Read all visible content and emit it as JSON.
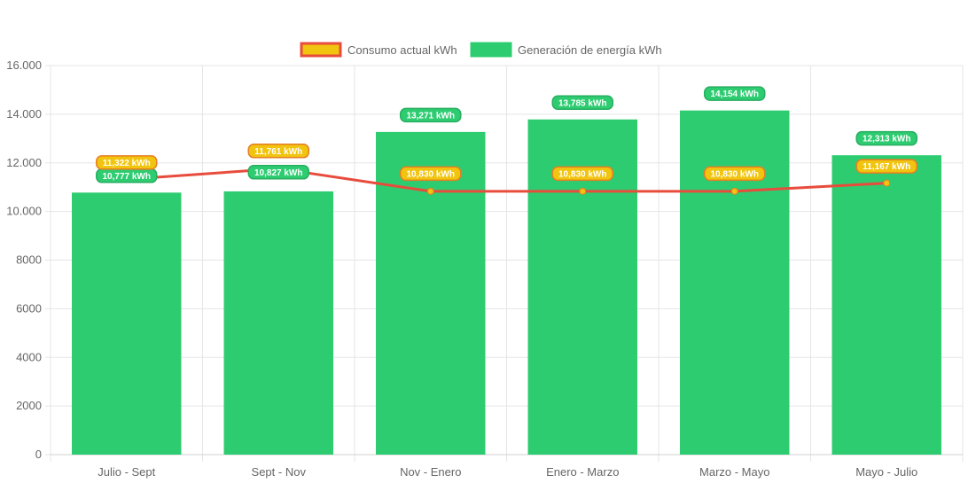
{
  "chart_data": {
    "type": "bar",
    "categories": [
      "Julio - Sept",
      "Sept - Nov",
      "Nov - Enero",
      "Enero - Marzo",
      "Marzo - Mayo",
      "Mayo - Julio"
    ],
    "series": [
      {
        "name": "Generación de energía kWh",
        "type": "bar",
        "values": [
          10777,
          10827,
          13271,
          13785,
          14154,
          12313
        ],
        "labels": [
          "10,777 kWh",
          "10,827 kWh",
          "13,271 kWh",
          "13,785 kWh",
          "14,154 kWh",
          "12,313 kWh"
        ],
        "color": "#2ecc71",
        "label_border": "#27ae60"
      },
      {
        "name": "Consumo actual kWh",
        "type": "line",
        "values": [
          11322,
          11761,
          10830,
          10830,
          10830,
          11167
        ],
        "labels": [
          "11,322 kWh",
          "11,761 kWh",
          "10,830 kWh",
          "10,830 kWh",
          "10,830 kWh",
          "11,167 kWh"
        ],
        "color": "#e74c3c",
        "fill": "#f1c40f",
        "label_border": "#e67e22"
      }
    ],
    "legend": [
      {
        "label": "Consumo actual kWh",
        "fill": "#f1c40f",
        "border": "#e74c3c"
      },
      {
        "label": "Generación de energía kWh",
        "fill": "#2ecc71",
        "border": "#2ecc71"
      }
    ],
    "legend_position": "top",
    "ylim": [
      0,
      16000
    ],
    "yticks": [
      0,
      2000,
      4000,
      6000,
      8000,
      10000,
      12000,
      14000,
      16000
    ],
    "ytick_labels": [
      "0",
      "2000",
      "4000",
      "6000",
      "8000",
      "10.000",
      "12.000",
      "14.000",
      "16.000"
    ],
    "grid": true,
    "title": "",
    "xlabel": "",
    "ylabel": ""
  }
}
